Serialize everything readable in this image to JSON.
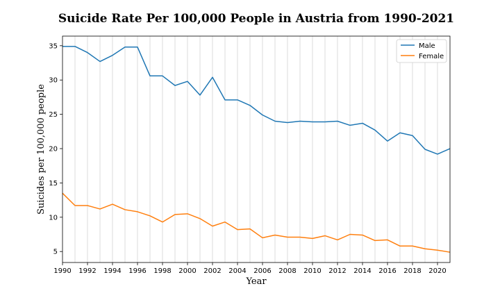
{
  "chart_data": {
    "type": "line",
    "title": "Suicide Rate Per 100,000 People in Austria from 1990-2021",
    "xlabel": "Year",
    "ylabel": "Suicides per 100,000 people",
    "xlim": [
      1990,
      2021
    ],
    "ylim": [
      3.4,
      36.4
    ],
    "x_ticks": [
      1990,
      1992,
      1994,
      1996,
      1998,
      2000,
      2002,
      2004,
      2006,
      2008,
      2010,
      2012,
      2014,
      2016,
      2018,
      2020
    ],
    "y_ticks": [
      5,
      10,
      15,
      20,
      25,
      30,
      35
    ],
    "grid": "vertical",
    "legend_position": "top-right",
    "x": [
      1990,
      1991,
      1992,
      1993,
      1994,
      1995,
      1996,
      1997,
      1998,
      1999,
      2000,
      2001,
      2002,
      2003,
      2004,
      2005,
      2006,
      2007,
      2008,
      2009,
      2010,
      2011,
      2012,
      2013,
      2014,
      2015,
      2016,
      2017,
      2018,
      2019,
      2020,
      2021
    ],
    "series": [
      {
        "name": "Male",
        "color": "#1f77b4",
        "values": [
          34.9,
          34.9,
          34.0,
          32.7,
          33.6,
          34.8,
          34.8,
          30.6,
          30.6,
          29.2,
          29.8,
          27.8,
          30.4,
          27.1,
          27.1,
          26.3,
          24.9,
          24.0,
          23.8,
          24.0,
          23.9,
          23.9,
          24.0,
          23.4,
          23.7,
          22.7,
          21.1,
          22.3,
          21.9,
          19.9,
          19.2,
          20.0
        ]
      },
      {
        "name": "Female",
        "color": "#ff7f0e",
        "values": [
          13.5,
          11.7,
          11.7,
          11.2,
          11.9,
          11.1,
          10.8,
          10.2,
          9.3,
          10.4,
          10.5,
          9.8,
          8.7,
          9.3,
          8.2,
          8.3,
          7.0,
          7.4,
          7.1,
          7.1,
          6.9,
          7.3,
          6.7,
          7.5,
          7.4,
          6.6,
          6.7,
          5.8,
          5.8,
          5.4,
          5.2,
          4.9
        ]
      }
    ]
  }
}
